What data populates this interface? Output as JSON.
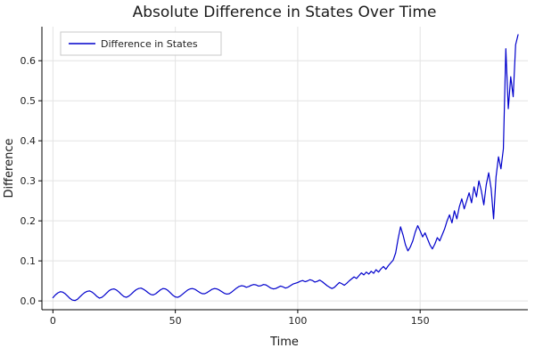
{
  "chart_data": {
    "type": "line",
    "title": "Absolute Difference in States Over Time",
    "xlabel": "Time",
    "ylabel": "Difference",
    "xlim": [
      -4.5,
      194
    ],
    "ylim": [
      -0.022,
      0.685
    ],
    "grid": true,
    "legend_position": "top-left",
    "background_color": "#ffffff",
    "grid_color": "#e3e3e3",
    "axis_color": "#000000",
    "xticks": [
      0,
      50,
      100,
      150
    ],
    "xtick_labels": [
      "0",
      "50",
      "100",
      "150"
    ],
    "yticks": [
      0.0,
      0.1,
      0.2,
      0.3,
      0.4,
      0.5,
      0.6
    ],
    "ytick_labels": [
      "0.0",
      "0.1",
      "0.2",
      "0.3",
      "0.4",
      "0.5",
      "0.6"
    ],
    "series": [
      {
        "name": "Difference in States",
        "color": "#0000cc",
        "x": [
          0,
          1,
          2,
          3,
          4,
          5,
          6,
          7,
          8,
          9,
          10,
          11,
          12,
          13,
          14,
          15,
          16,
          17,
          18,
          19,
          20,
          21,
          22,
          23,
          24,
          25,
          26,
          27,
          28,
          29,
          30,
          31,
          32,
          33,
          34,
          35,
          36,
          37,
          38,
          39,
          40,
          41,
          42,
          43,
          44,
          45,
          46,
          47,
          48,
          49,
          50,
          51,
          52,
          53,
          54,
          55,
          56,
          57,
          58,
          59,
          60,
          61,
          62,
          63,
          64,
          65,
          66,
          67,
          68,
          69,
          70,
          71,
          72,
          73,
          74,
          75,
          76,
          77,
          78,
          79,
          80,
          81,
          82,
          83,
          84,
          85,
          86,
          87,
          88,
          89,
          90,
          91,
          92,
          93,
          94,
          95,
          96,
          97,
          98,
          99,
          100,
          101,
          102,
          103,
          104,
          105,
          106,
          107,
          108,
          109,
          110,
          111,
          112,
          113,
          114,
          115,
          116,
          117,
          118,
          119,
          120,
          121,
          122,
          123,
          124,
          125,
          126,
          127,
          128,
          129,
          130,
          131,
          132,
          133,
          134,
          135,
          136,
          137,
          138,
          139,
          140,
          141,
          142,
          143,
          144,
          145,
          146,
          147,
          148,
          149,
          150,
          151,
          152,
          153,
          154,
          155,
          156,
          157,
          158,
          159,
          160,
          161,
          162,
          163,
          164,
          165,
          166,
          167,
          168,
          169,
          170,
          171,
          172,
          173,
          174,
          175,
          176,
          177,
          178,
          179,
          180,
          181,
          182,
          183,
          184,
          185,
          186,
          187,
          188,
          189,
          190
        ],
        "y": [
          0.008,
          0.015,
          0.02,
          0.023,
          0.022,
          0.018,
          0.012,
          0.006,
          0.002,
          0.001,
          0.004,
          0.01,
          0.016,
          0.021,
          0.024,
          0.025,
          0.022,
          0.017,
          0.011,
          0.007,
          0.009,
          0.014,
          0.02,
          0.026,
          0.029,
          0.03,
          0.027,
          0.022,
          0.016,
          0.011,
          0.009,
          0.012,
          0.017,
          0.023,
          0.028,
          0.031,
          0.032,
          0.029,
          0.025,
          0.02,
          0.016,
          0.015,
          0.018,
          0.023,
          0.028,
          0.031,
          0.03,
          0.026,
          0.02,
          0.014,
          0.01,
          0.009,
          0.012,
          0.017,
          0.022,
          0.027,
          0.03,
          0.031,
          0.029,
          0.025,
          0.021,
          0.018,
          0.018,
          0.021,
          0.025,
          0.029,
          0.031,
          0.03,
          0.027,
          0.023,
          0.019,
          0.017,
          0.018,
          0.022,
          0.027,
          0.032,
          0.036,
          0.038,
          0.037,
          0.034,
          0.036,
          0.039,
          0.041,
          0.04,
          0.037,
          0.038,
          0.041,
          0.04,
          0.036,
          0.032,
          0.03,
          0.031,
          0.034,
          0.037,
          0.035,
          0.032,
          0.034,
          0.038,
          0.042,
          0.044,
          0.046,
          0.049,
          0.051,
          0.048,
          0.05,
          0.053,
          0.051,
          0.047,
          0.049,
          0.052,
          0.048,
          0.043,
          0.038,
          0.034,
          0.031,
          0.034,
          0.04,
          0.046,
          0.043,
          0.039,
          0.044,
          0.05,
          0.055,
          0.06,
          0.056,
          0.063,
          0.07,
          0.065,
          0.072,
          0.067,
          0.074,
          0.069,
          0.078,
          0.072,
          0.08,
          0.086,
          0.079,
          0.088,
          0.095,
          0.102,
          0.12,
          0.155,
          0.185,
          0.165,
          0.14,
          0.125,
          0.135,
          0.15,
          0.172,
          0.188,
          0.175,
          0.16,
          0.17,
          0.155,
          0.14,
          0.13,
          0.142,
          0.158,
          0.15,
          0.165,
          0.18,
          0.2,
          0.215,
          0.195,
          0.225,
          0.205,
          0.235,
          0.255,
          0.23,
          0.25,
          0.27,
          0.245,
          0.285,
          0.26,
          0.3,
          0.275,
          0.24,
          0.29,
          0.32,
          0.28,
          0.205,
          0.31,
          0.36,
          0.33,
          0.38,
          0.63,
          0.48,
          0.56,
          0.51,
          0.64,
          0.665
        ]
      }
    ]
  }
}
